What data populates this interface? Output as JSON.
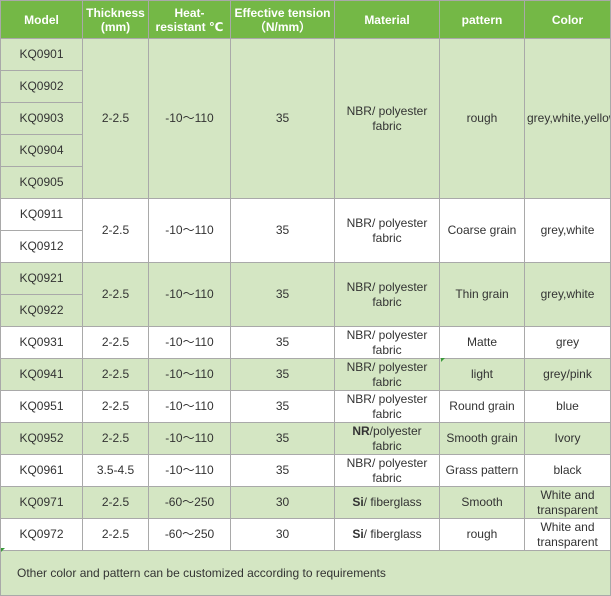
{
  "headers": {
    "model": "Model",
    "thickness": "Thickness\n(mm)",
    "heat": "Heat-\nresistant ℃",
    "tension": "Effective tension\n（N/mm）",
    "material": "Material",
    "pattern": "pattern",
    "color": "Color"
  },
  "groups": [
    {
      "models": [
        "KQ0901",
        "KQ0902",
        "KQ0903",
        "KQ0904",
        "KQ0905"
      ],
      "thickness": "2-2.5",
      "heat": "-10～110",
      "tension": "35",
      "material": "NBR/ polyester fabric",
      "pattern": "rough",
      "color": "grey,white,yellow,blue,red",
      "shade": "green"
    },
    {
      "models": [
        "KQ0911",
        "KQ0912"
      ],
      "thickness": "2-2.5",
      "heat": "-10～110",
      "tension": "35",
      "material": "NBR/ polyester fabric",
      "pattern": "Coarse grain",
      "color": "grey,white",
      "shade": "white"
    },
    {
      "models": [
        "KQ0921",
        "KQ0922"
      ],
      "thickness": "2-2.5",
      "heat": "-10～110",
      "tension": "35",
      "material": "NBR/ polyester fabric",
      "pattern": "Thin grain",
      "color": "grey,white",
      "shade": "green"
    },
    {
      "models": [
        "KQ0931"
      ],
      "thickness": "2-2.5",
      "heat": "-10～110",
      "tension": "35",
      "material": "NBR/ polyester fabric",
      "pattern": "Matte",
      "color": "grey",
      "shade": "white"
    },
    {
      "models": [
        "KQ0941"
      ],
      "thickness": "2-2.5",
      "heat": "-10～110",
      "tension": "35",
      "material": "NBR/ polyester fabric",
      "pattern": "light",
      "color": "grey/pink",
      "shade": "green"
    },
    {
      "models": [
        "KQ0951"
      ],
      "thickness": "2-2.5",
      "heat": "-10～110",
      "tension": "35",
      "material": "NBR/ polyester fabric",
      "pattern": "Round grain",
      "color": "blue",
      "shade": "white"
    },
    {
      "models": [
        "KQ0952"
      ],
      "thickness": "2-2.5",
      "heat": "-10～110",
      "tension": "35",
      "material_bold": "NR",
      "material": "/polyester fabric",
      "pattern": "Smooth grain",
      "color": "Ivory",
      "shade": "green"
    },
    {
      "models": [
        "KQ0961"
      ],
      "thickness": "3.5-4.5",
      "heat": "-10～110",
      "tension": "35",
      "material": "NBR/ polyester fabric",
      "pattern": "Grass pattern",
      "color": "black",
      "shade": "white"
    },
    {
      "models": [
        "KQ0971"
      ],
      "thickness": "2-2.5",
      "heat": "-60～250",
      "tension": "30",
      "material_bold": "Si",
      "material": "/ fiberglass",
      "pattern": "Smooth",
      "color": "White and transparent",
      "shade": "green"
    },
    {
      "models": [
        "KQ0972"
      ],
      "thickness": "2-2.5",
      "heat": "-60～250",
      "tension": "30",
      "material_bold": "Si",
      "material": "/ fiberglass",
      "pattern": "rough",
      "color": "White and transparent",
      "shade": "white"
    }
  ],
  "footnote": "Other color and pattern can be customized according to requirements",
  "colors": {
    "header": "#74b846",
    "row_green": "#d4e6c3",
    "row_white": "#ffffff",
    "border": "#a9a9a9"
  }
}
